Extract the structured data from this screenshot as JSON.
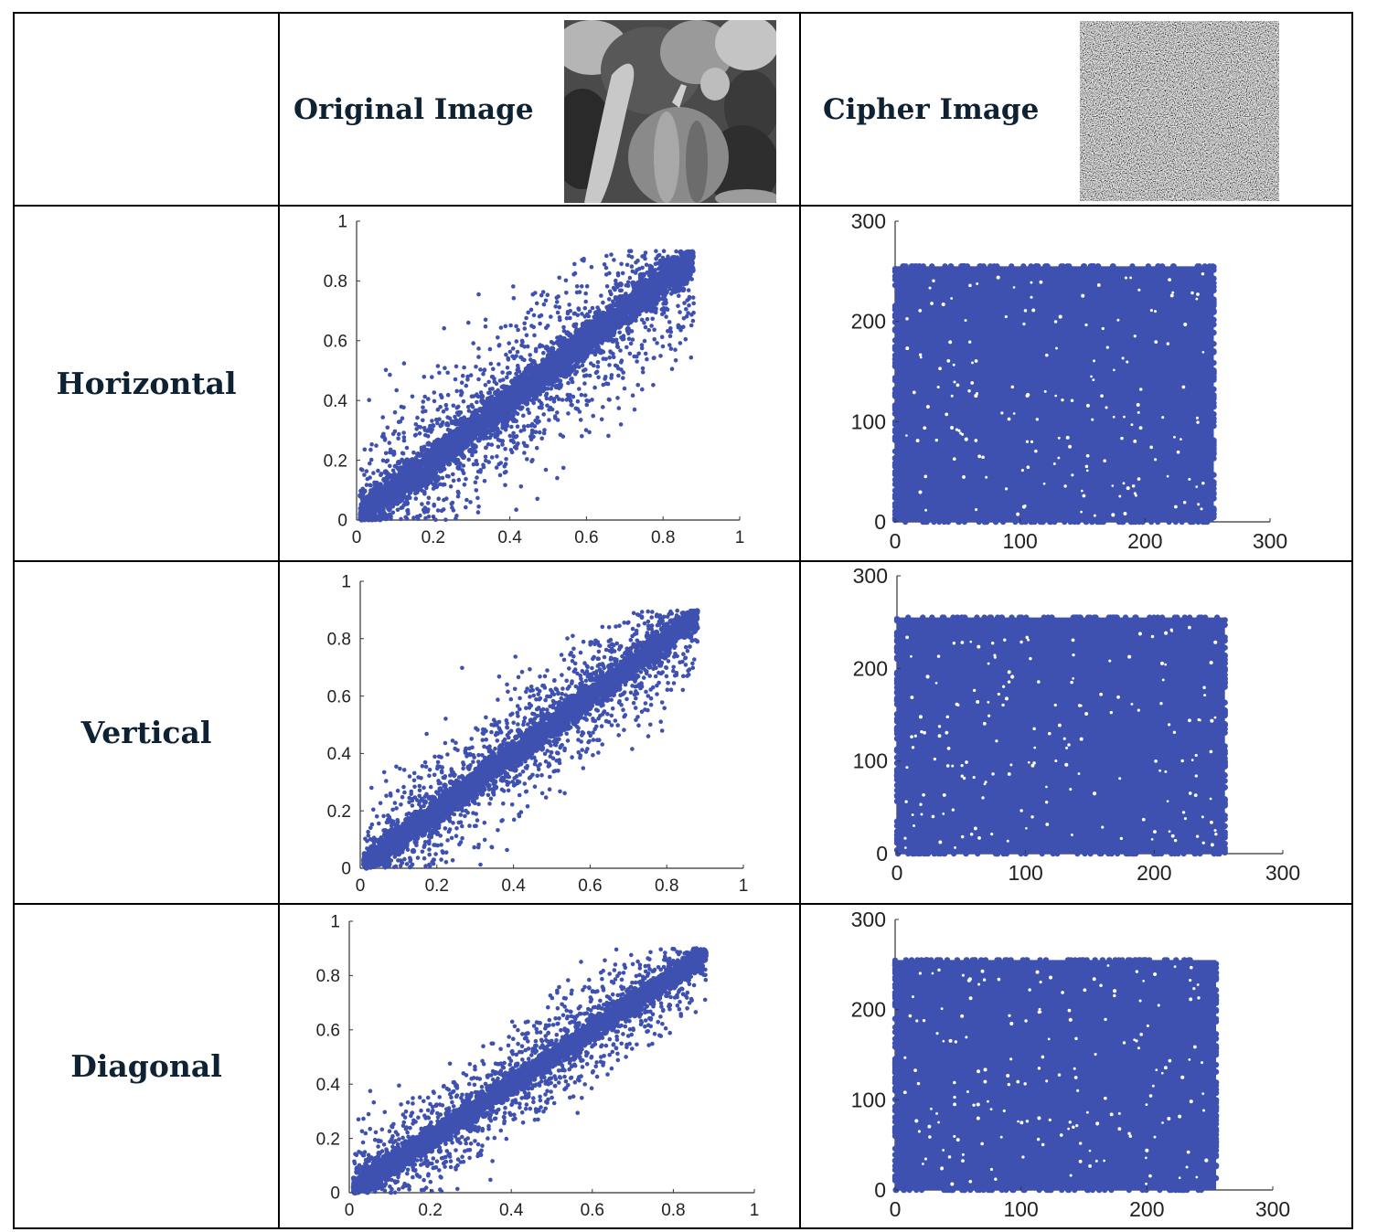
{
  "header": {
    "original_label": "Original Image",
    "cipher_label": "Cipher Image",
    "original_image_icon": "grayscale-peppers-photo",
    "cipher_image_icon": "noise-image"
  },
  "rows": [
    {
      "label": "Horizontal"
    },
    {
      "label": "Vertical"
    },
    {
      "label": "Diagonal"
    }
  ],
  "colors": {
    "marker": "#3f51b0",
    "text": "#0f2233"
  },
  "chart_data": [
    {
      "id": "orig-horizontal",
      "type": "scatter",
      "title": "Original Image – Horizontal",
      "xlim": [
        0,
        1
      ],
      "ylim": [
        0,
        1
      ],
      "xticks": [
        0,
        0.2,
        0.4,
        0.6,
        0.8,
        1
      ],
      "yticks": [
        0,
        0.2,
        0.4,
        0.6,
        0.8,
        1
      ],
      "xtick_labels": [
        "0",
        "0.2",
        "0.4",
        "0.6",
        "0.8",
        "1"
      ],
      "ytick_labels": [
        "0",
        "0.2",
        "0.4",
        "0.6",
        "0.8",
        "1"
      ],
      "series": [
        {
          "name": "adjacent pixel pairs",
          "description": "pixel pairs clustered along y = x",
          "range_x": [
            0.0,
            0.88
          ],
          "range_y": [
            0.0,
            0.88
          ],
          "spread": 0.1
        }
      ]
    },
    {
      "id": "cipher-horizontal",
      "type": "scatter",
      "title": "Cipher Image – Horizontal",
      "xlim": [
        0,
        300
      ],
      "ylim": [
        0,
        300
      ],
      "xticks": [
        0,
        100,
        200,
        300
      ],
      "yticks": [
        0,
        100,
        200,
        300
      ],
      "xtick_labels": [
        "0",
        "100",
        "200",
        "300"
      ],
      "ytick_labels": [
        "0",
        "100",
        "200",
        "300"
      ],
      "series": [
        {
          "name": "adjacent pixel pairs",
          "description": "uniform random fill",
          "range_x": [
            0,
            255
          ],
          "range_y": [
            0,
            255
          ]
        }
      ]
    },
    {
      "id": "orig-vertical",
      "type": "scatter",
      "title": "Original Image – Vertical",
      "xlim": [
        0,
        1
      ],
      "ylim": [
        0,
        1
      ],
      "xticks": [
        0,
        0.2,
        0.4,
        0.6,
        0.8,
        1
      ],
      "yticks": [
        0,
        0.2,
        0.4,
        0.6,
        0.8,
        1
      ],
      "xtick_labels": [
        "0",
        "0.2",
        "0.4",
        "0.6",
        "0.8",
        "1"
      ],
      "ytick_labels": [
        "0",
        "0.2",
        "0.4",
        "0.6",
        "0.8",
        "1"
      ],
      "series": [
        {
          "name": "adjacent pixel pairs",
          "description": "pixel pairs clustered along y = x",
          "range_x": [
            0.0,
            0.88
          ],
          "range_y": [
            0.0,
            0.88
          ],
          "spread": 0.08
        }
      ]
    },
    {
      "id": "cipher-vertical",
      "type": "scatter",
      "title": "Cipher Image – Vertical",
      "xlim": [
        0,
        300
      ],
      "ylim": [
        0,
        300
      ],
      "xticks": [
        0,
        100,
        200,
        300
      ],
      "yticks": [
        0,
        100,
        200,
        300
      ],
      "xtick_labels": [
        "0",
        "100",
        "200",
        "300"
      ],
      "ytick_labels": [
        "0",
        "100",
        "200",
        "300"
      ],
      "series": [
        {
          "name": "adjacent pixel pairs",
          "description": "uniform random fill",
          "range_x": [
            0,
            255
          ],
          "range_y": [
            0,
            255
          ]
        }
      ]
    },
    {
      "id": "orig-diagonal",
      "type": "scatter",
      "title": "Original Image – Diagonal",
      "xlim": [
        0,
        1
      ],
      "ylim": [
        0,
        1
      ],
      "xticks": [
        0,
        0.2,
        0.4,
        0.6,
        0.8,
        1
      ],
      "yticks": [
        0,
        0.2,
        0.4,
        0.6,
        0.8,
        1
      ],
      "xtick_labels": [
        "0",
        "0.2",
        "0.4",
        "0.6",
        "0.8",
        "1"
      ],
      "ytick_labels": [
        "0",
        "0.2",
        "0.4",
        "0.6",
        "0.8",
        "1"
      ],
      "series": [
        {
          "name": "adjacent pixel pairs",
          "description": "pixel pairs clustered along y = x",
          "range_x": [
            0.0,
            0.88
          ],
          "range_y": [
            0.0,
            0.88
          ],
          "spread": 0.07
        }
      ]
    },
    {
      "id": "cipher-diagonal",
      "type": "scatter",
      "title": "Cipher Image – Diagonal",
      "xlim": [
        0,
        300
      ],
      "ylim": [
        0,
        300
      ],
      "xticks": [
        0,
        100,
        200,
        300
      ],
      "yticks": [
        0,
        100,
        200,
        300
      ],
      "xtick_labels": [
        "0",
        "100",
        "200",
        "300"
      ],
      "ytick_labels": [
        "0",
        "100",
        "200",
        "300"
      ],
      "series": [
        {
          "name": "adjacent pixel pairs",
          "description": "uniform random fill",
          "range_x": [
            0,
            255
          ],
          "range_y": [
            0,
            255
          ]
        }
      ]
    }
  ]
}
